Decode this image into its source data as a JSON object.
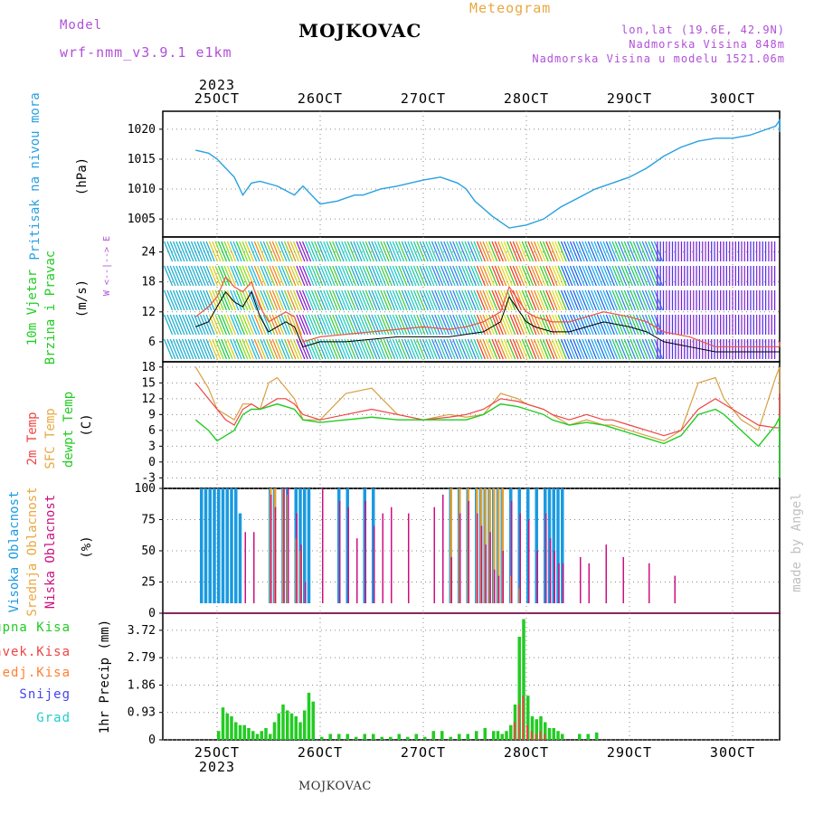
{
  "header": {
    "model_label": "Model",
    "model_name": "wrf-nmm_v3.9.1 e1km",
    "title": "MOJKOVAC",
    "product": "Meteogram",
    "coords": "lon,lat (19.6E, 42.9N)",
    "elevation": "Nadmorska Visina 848m",
    "model_elevation": "Nadmorska Visina u modelu 1521.06m",
    "footer_title": "MOJKOVAC",
    "watermark": "made by Angel"
  },
  "colors": {
    "purple": "#b050d8",
    "orange": "#e8a840",
    "pressure": "#2aa0e0",
    "green": "#22cc22",
    "red": "#ee4444",
    "orange_precip": "#ff8030",
    "snow": "#4444ee",
    "grad": "#22cccc",
    "high_cloud": "#1a9ae0",
    "mid_cloud": "#e0a030",
    "low_cloud": "#cc1080",
    "temp2m": "#ee4444",
    "sfc": "#d8a040",
    "dewpt": "#22cc22"
  },
  "time_axis": {
    "year": "2023",
    "days": [
      "25OCT",
      "26OCT",
      "27OCT",
      "28OCT",
      "29OCT",
      "30OCT"
    ]
  },
  "panels": {
    "pressure": {
      "label": "Pritisak na nivou mora",
      "unit": "(hPa)",
      "ticks": [
        "1020",
        "1015",
        "1010",
        "1005"
      ]
    },
    "wind": {
      "label1": "10m Vjetar",
      "label2": "Brzina i Pravac",
      "unit": "(m/s)",
      "ticks": [
        "24",
        "18",
        "12",
        "6"
      ],
      "compass": "W <--|--> E"
    },
    "temp": {
      "label1": "2m Temp",
      "label2": "SFC Temp",
      "label3": "dewpt Temp",
      "unit": "(C)",
      "ticks": [
        "18",
        "15",
        "12",
        "9",
        "6",
        "3",
        "0",
        "-3"
      ]
    },
    "cloud": {
      "label1": "Visoka Oblacnost",
      "label2": "Srednja Oblacnost",
      "label3": "Niska Oblacnost",
      "unit": "(%)",
      "ticks": [
        "100",
        "75",
        "50",
        "25",
        "0"
      ]
    },
    "precip": {
      "unit": "1hr Precip (mm)",
      "ticks": [
        "3.72",
        "2.79",
        "1.86",
        "0.93",
        "0"
      ],
      "legend": [
        "Ukupna Kisa",
        "Konvek.Kisa",
        "Zaledj.Kisa",
        "Snijeg",
        "Grad"
      ]
    }
  },
  "chart_data": [
    {
      "type": "line",
      "title": "Pritisak na nivou mora",
      "ylabel": "(hPa)",
      "ylim": [
        1002,
        1023
      ],
      "x_hours_from_25oct00": [
        -5,
        -2,
        0,
        2,
        4,
        6,
        8,
        10,
        14,
        18,
        20,
        24,
        28,
        32,
        34,
        38,
        42,
        48,
        52,
        56,
        58,
        60,
        64,
        68,
        72,
        76,
        80,
        84,
        88,
        92,
        96,
        100,
        104,
        108,
        112,
        116,
        120,
        124,
        130,
        136,
        140,
        144,
        148,
        152,
        156,
        160
      ],
      "series": [
        {
          "values": [
            1016.5,
            1016,
            1015,
            1013.5,
            1012,
            1009,
            1011,
            1011.3,
            1010.5,
            1009,
            1010.5,
            1007.5,
            1008,
            1009,
            1009,
            1010,
            1010.5,
            1011.5,
            1012,
            1011,
            1010,
            1008,
            1005.5,
            1003.5,
            1004,
            1005,
            1007,
            1008.5,
            1010,
            1011,
            1012,
            1013.5,
            1015.5,
            1017,
            1018,
            1018.5,
            1018.5,
            1019,
            1020.5,
            1021.5,
            1021.5,
            1021.3,
            1021,
            1020.5,
            1020,
            1019.5
          ]
        }
      ]
    },
    {
      "type": "line",
      "title": "10m Vjetar Brzina i Pravac",
      "ylabel": "(m/s)",
      "ylim": [
        2,
        27
      ],
      "x_hours_from_25oct00": [
        -5,
        -2,
        0,
        2,
        4,
        6,
        8,
        10,
        12,
        14,
        16,
        18,
        20,
        24,
        30,
        36,
        42,
        48,
        54,
        58,
        62,
        66,
        68,
        72,
        74,
        78,
        82,
        86,
        90,
        96,
        100,
        104,
        110,
        116,
        120,
        124,
        130,
        136,
        140,
        144,
        148,
        152,
        160
      ],
      "series": [
        {
          "name": "speed",
          "values": [
            11,
            13,
            15,
            19,
            17,
            16,
            18,
            13,
            10,
            11,
            12,
            11,
            6,
            7,
            7.5,
            8,
            8.5,
            9,
            8.5,
            9,
            10,
            12,
            17,
            12,
            11,
            10,
            10,
            11,
            12,
            11,
            10,
            8,
            7,
            5,
            5,
            5,
            5,
            5,
            5,
            5,
            5,
            5,
            6
          ]
        },
        {
          "name": "gust",
          "values": [
            9,
            10,
            13,
            16,
            14,
            13,
            16,
            11,
            8,
            9,
            10,
            9,
            5,
            6,
            6,
            6.5,
            7,
            7,
            7,
            7.5,
            8,
            10,
            15,
            10,
            9,
            8,
            8,
            9,
            10,
            9,
            8,
            6,
            5,
            4,
            4,
            4,
            4,
            4,
            4,
            4,
            4,
            4,
            5
          ]
        }
      ]
    },
    {
      "type": "line",
      "title": "Temp",
      "ylabel": "(C)",
      "ylim": [
        -5,
        19
      ],
      "x_hours_from_25oct00": [
        -5,
        -2,
        0,
        2,
        4,
        6,
        8,
        10,
        12,
        14,
        16,
        18,
        20,
        24,
        30,
        36,
        42,
        48,
        54,
        58,
        62,
        66,
        70,
        72,
        76,
        78,
        82,
        86,
        90,
        92,
        96,
        100,
        104,
        108,
        112,
        116,
        118,
        122,
        126,
        130,
        134,
        138,
        140,
        144,
        148,
        152,
        156,
        160
      ],
      "series": [
        {
          "name": "2m Temp",
          "values": [
            15,
            12,
            10,
            8,
            7,
            10,
            11,
            10,
            11,
            12,
            12,
            11,
            9,
            8,
            9,
            10,
            9,
            8,
            8.5,
            9,
            10,
            12,
            11.5,
            11,
            10,
            9,
            8,
            9,
            8,
            8,
            7,
            6,
            5,
            6,
            10,
            12,
            11,
            9,
            7,
            6.5,
            6.5,
            7,
            7,
            6.5,
            6.5,
            7,
            12,
            13
          ]
        },
        {
          "name": "SFC Temp",
          "values": [
            18,
            14,
            10,
            9,
            8,
            11,
            11,
            10,
            15,
            16,
            14,
            12,
            8,
            8,
            13,
            14,
            9,
            8,
            9,
            8.5,
            9,
            13,
            12,
            11,
            10,
            9,
            7,
            8,
            7,
            7,
            6,
            5,
            4,
            6,
            15,
            16,
            12,
            8,
            6,
            16,
            18,
            14,
            8,
            5,
            4,
            4,
            17,
            17
          ]
        },
        {
          "name": "dewpt Temp",
          "values": [
            8,
            6,
            4,
            5,
            6,
            9,
            10,
            10,
            10.5,
            11,
            10.5,
            10,
            8,
            7.5,
            8,
            8.5,
            8,
            8,
            8,
            8,
            9,
            11,
            10.5,
            10,
            9,
            8,
            7,
            7.5,
            7,
            6.5,
            5.5,
            4.5,
            3.5,
            5,
            9,
            10,
            9,
            6,
            3,
            7,
            8.5,
            8,
            4,
            -2,
            -3,
            -1,
            2,
            3
          ]
        }
      ]
    },
    {
      "type": "bar",
      "title": "Oblacnost",
      "ylabel": "(%)",
      "ylim": [
        0,
        100
      ],
      "x_hours_from_25oct00": [
        -4,
        -3,
        -2,
        -1,
        0,
        1,
        2,
        3,
        4,
        5,
        6,
        8,
        12,
        13,
        15,
        16,
        18,
        19,
        20,
        21,
        22,
        24,
        28,
        30,
        32,
        34,
        36,
        38,
        40,
        44,
        50,
        52,
        54,
        56,
        58,
        60,
        61,
        62,
        63,
        64,
        65,
        66,
        68,
        70,
        72,
        74,
        76,
        77,
        78,
        79,
        80,
        84,
        86,
        90,
        94,
        100,
        106,
        112,
        118,
        124,
        130,
        136
      ],
      "series": [
        {
          "name": "Visoka Oblacnost",
          "values": [
            100,
            100,
            100,
            100,
            100,
            100,
            100,
            100,
            100,
            80,
            0,
            0,
            100,
            100,
            100,
            100,
            100,
            100,
            100,
            100,
            0,
            0,
            100,
            100,
            0,
            100,
            100,
            0,
            0,
            0,
            0,
            0,
            100,
            100,
            100,
            100,
            100,
            100,
            100,
            100,
            100,
            100,
            100,
            100,
            100,
            100,
            100,
            100,
            100,
            100,
            100,
            0,
            0,
            0,
            0,
            0,
            0,
            0,
            0,
            0,
            0,
            0
          ]
        },
        {
          "name": "Srednja Oblacnost",
          "values": [
            0,
            0,
            0,
            0,
            0,
            0,
            0,
            0,
            0,
            0,
            0,
            0,
            100,
            100,
            100,
            95,
            60,
            50,
            0,
            0,
            0,
            0,
            0,
            0,
            0,
            0,
            0,
            0,
            0,
            0,
            0,
            0,
            100,
            100,
            100,
            100,
            100,
            100,
            100,
            100,
            100,
            100,
            30,
            20,
            0,
            0,
            0,
            0,
            0,
            0,
            0,
            0,
            0,
            0,
            0,
            0,
            0,
            0,
            0,
            0,
            0,
            0
          ]
        },
        {
          "name": "Niska Oblacnost",
          "values": [
            0,
            0,
            0,
            0,
            0,
            0,
            0,
            0,
            0,
            0,
            65,
            65,
            95,
            85,
            100,
            100,
            80,
            55,
            25,
            0,
            0,
            100,
            90,
            85,
            60,
            90,
            70,
            80,
            85,
            80,
            85,
            95,
            45,
            80,
            90,
            80,
            70,
            55,
            65,
            35,
            30,
            50,
            90,
            80,
            75,
            50,
            80,
            60,
            50,
            40,
            40,
            45,
            40,
            55,
            45,
            40,
            30,
            2,
            5,
            2,
            0,
            0
          ]
        }
      ]
    },
    {
      "type": "bar",
      "title": "1hr Precip",
      "ylabel": "1hr Precip (mm)",
      "ylim": [
        0,
        4.3
      ],
      "x_hours_from_25oct00": [
        0,
        1,
        2,
        3,
        4,
        5,
        6,
        7,
        8,
        9,
        10,
        11,
        12,
        13,
        14,
        15,
        16,
        17,
        18,
        19,
        20,
        21,
        22,
        24,
        26,
        28,
        30,
        32,
        34,
        36,
        38,
        40,
        42,
        44,
        46,
        48,
        50,
        52,
        54,
        56,
        58,
        60,
        62,
        64,
        65,
        66,
        67,
        68,
        69,
        70,
        71,
        72,
        73,
        74,
        75,
        76,
        77,
        78,
        79,
        80,
        84,
        86,
        88
      ],
      "series": [
        {
          "name": "Ukupna Kisa",
          "values": [
            0.3,
            1.1,
            0.9,
            0.8,
            0.6,
            0.5,
            0.5,
            0.4,
            0.3,
            0.2,
            0.3,
            0.4,
            0.2,
            0.6,
            0.9,
            1.2,
            1.0,
            0.9,
            0.8,
            0.6,
            1.0,
            1.6,
            1.3,
            0.1,
            0.2,
            0.2,
            0.2,
            0.1,
            0.2,
            0.2,
            0.1,
            0.1,
            0.2,
            0.1,
            0.2,
            0.1,
            0.3,
            0.3,
            0.1,
            0.2,
            0.2,
            0.3,
            0.4,
            0.3,
            0.3,
            0.2,
            0.3,
            0.5,
            1.2,
            3.5,
            4.1,
            1.5,
            0.8,
            0.7,
            0.8,
            0.6,
            0.4,
            0.4,
            0.3,
            0.2,
            0.2,
            0.2,
            0.25
          ]
        },
        {
          "name": "Konvek.Kisa",
          "values": [
            0,
            0,
            0,
            0,
            0,
            0,
            0,
            0,
            0,
            0,
            0,
            0,
            0,
            0,
            0,
            0,
            0,
            0,
            0,
            0,
            0,
            0,
            0,
            0,
            0,
            0,
            0,
            0,
            0,
            0,
            0,
            0,
            0,
            0,
            0,
            0,
            0,
            0,
            0,
            0,
            0,
            0,
            0,
            0,
            0,
            0,
            0,
            0,
            0.6,
            1.2,
            1.5,
            0.5,
            0.3,
            0.2,
            0.3,
            0.2,
            0,
            0,
            0,
            0,
            0,
            0,
            0
          ]
        }
      ]
    }
  ]
}
